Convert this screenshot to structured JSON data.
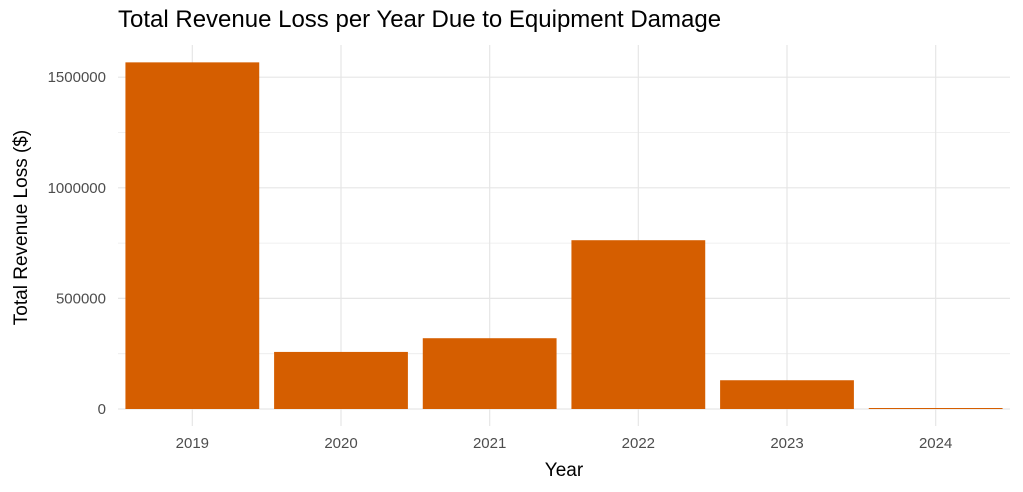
{
  "chart_data": {
    "type": "bar",
    "title": "Total Revenue Loss per Year Due to Equipment Damage",
    "xlabel": "Year",
    "ylabel": "Total Revenue Loss ($)",
    "categories": [
      "2019",
      "2020",
      "2021",
      "2022",
      "2023",
      "2024"
    ],
    "values": [
      1567000,
      258000,
      320000,
      763000,
      130000,
      3000
    ],
    "ylim": [
      0,
      1650000
    ],
    "yticks": [
      0,
      500000,
      1000000,
      1500000
    ],
    "ytick_labels": [
      "0",
      "500000",
      "1000000",
      "1500000"
    ],
    "grid": true,
    "legend": "none",
    "bar_color": "#D55E00"
  }
}
